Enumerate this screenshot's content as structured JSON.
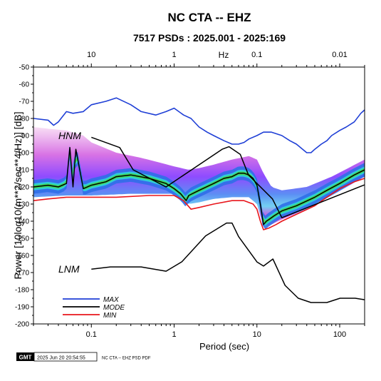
{
  "chart_data": {
    "type": "line",
    "title": "NC CTA -- EHZ",
    "subtitle": "7517 PSDs : 2025.001 - 2025:169",
    "xlabel": "Period (sec)",
    "ylabel": "Power [10log10(m**2/sec**4/Hz)] [dB]",
    "top_axis_label": "Hz",
    "x_scale": "log",
    "xlim": [
      0.02,
      200
    ],
    "ylim": [
      -200,
      -50
    ],
    "x_ticks": [
      {
        "value": 0.1,
        "label": "0.1"
      },
      {
        "value": 1,
        "label": "1"
      },
      {
        "value": 10,
        "label": "10"
      },
      {
        "value": 100,
        "label": "100"
      }
    ],
    "top_ticks": [
      {
        "value": 0.1,
        "label": "10"
      },
      {
        "value": 1,
        "label": "1"
      },
      {
        "value": 10,
        "label": "0.1"
      },
      {
        "value": 100,
        "label": "0.01"
      }
    ],
    "y_ticks": [
      -50,
      -60,
      -70,
      -80,
      -90,
      -100,
      -110,
      -120,
      -130,
      -140,
      -150,
      -160,
      -170,
      -180,
      -190,
      -200
    ],
    "annotations": [
      {
        "text": "HNM",
        "x": 0.04,
        "y": -92
      },
      {
        "text": "LNM",
        "x": 0.04,
        "y": -170
      }
    ],
    "legend": {
      "placement": "bottom-left",
      "entries": [
        {
          "label": "MAX",
          "color": "#1f3fd6"
        },
        {
          "label": "MODE",
          "color": "#000000"
        },
        {
          "label": "MIN",
          "color": "#e8161c"
        }
      ]
    },
    "series": [
      {
        "name": "MAX",
        "color": "#1f3fd6",
        "x": [
          0.02,
          0.03,
          0.035,
          0.04,
          0.05,
          0.06,
          0.08,
          0.1,
          0.15,
          0.2,
          0.3,
          0.4,
          0.6,
          0.8,
          1,
          1.3,
          1.6,
          2,
          2.5,
          3,
          4,
          5,
          6,
          7,
          8,
          10,
          12,
          15,
          20,
          25,
          30,
          40,
          45,
          50,
          60,
          70,
          80,
          100,
          120,
          150,
          180,
          200
        ],
        "y": [
          -80,
          -81,
          -84,
          -82,
          -76,
          -77,
          -76,
          -72,
          -70,
          -68,
          -72,
          -76,
          -78,
          -76,
          -74,
          -78,
          -80,
          -85,
          -88,
          -90,
          -93,
          -95,
          -95,
          -94,
          -92,
          -90,
          -88,
          -88,
          -90,
          -93,
          -95,
          -100,
          -100,
          -98,
          -95,
          -93,
          -90,
          -87,
          -85,
          -82,
          -77,
          -75
        ]
      },
      {
        "name": "MODE",
        "color": "#000000",
        "x": [
          0.02,
          0.03,
          0.04,
          0.05,
          0.055,
          0.06,
          0.065,
          0.08,
          0.1,
          0.15,
          0.2,
          0.3,
          0.5,
          0.8,
          1,
          1.2,
          1.4,
          1.5,
          2,
          3,
          4,
          5,
          6,
          7,
          8,
          9,
          10,
          11,
          12,
          13,
          14,
          16,
          20,
          30,
          50,
          70,
          100,
          150,
          200
        ],
        "y": [
          -120,
          -119,
          -120,
          -118,
          -97,
          -120,
          -98,
          -121,
          -119,
          -117,
          -114,
          -113,
          -115,
          -118,
          -121,
          -124,
          -128,
          -125,
          -122,
          -118,
          -115,
          -114,
          -112,
          -112,
          -113,
          -115,
          -119,
          -130,
          -142,
          -140,
          -139,
          -137,
          -134,
          -131,
          -126,
          -122,
          -118,
          -113,
          -110
        ]
      },
      {
        "name": "MIN",
        "color": "#e8161c",
        "x": [
          0.02,
          0.03,
          0.05,
          0.1,
          0.2,
          0.5,
          0.8,
          1,
          1.3,
          1.6,
          2,
          3,
          5,
          7,
          9,
          10,
          11,
          12,
          14,
          17,
          20,
          30,
          50,
          70,
          100,
          150,
          200
        ],
        "y": [
          -128,
          -127,
          -126,
          -126,
          -126,
          -125,
          -125,
          -125,
          -128,
          -133,
          -132,
          -130,
          -128,
          -128,
          -130,
          -133,
          -140,
          -145,
          -144,
          -142,
          -140,
          -136,
          -131,
          -126,
          -121,
          -117,
          -115
        ]
      },
      {
        "name": "HNM",
        "color": "#000000",
        "x": [
          0.1,
          0.22,
          0.32,
          0.8,
          3.8,
          4.6,
          6.3,
          7.9,
          15.4,
          20,
          354
        ],
        "y": [
          -91,
          -97,
          -110,
          -120,
          -98,
          -96.5,
          -101,
          -113,
          -127,
          -138,
          -114
        ]
      },
      {
        "name": "LNM",
        "color": "#000000",
        "x": [
          0.1,
          0.17,
          0.4,
          0.8,
          1.24,
          2.4,
          4.3,
          5,
          6,
          10,
          12,
          15.6,
          21.9,
          31.6,
          45,
          70,
          101,
          154,
          328
        ],
        "y": [
          -168,
          -166.7,
          -166.7,
          -169.2,
          -163.7,
          -148.6,
          -141.1,
          -141.1,
          -149.0,
          -163.8,
          -166.2,
          -162.1,
          -177.5,
          -185.0,
          -187.5,
          -187.5,
          -185.0,
          -185.0,
          -187.5
        ]
      }
    ],
    "psd_density": {
      "colormap": "pqlx (white - pink - magenta - blue - cyan - green - yellow - red)",
      "upper_envelope": {
        "x": [
          0.02,
          0.03,
          0.05,
          0.08,
          0.1,
          0.2,
          0.4,
          0.7,
          1,
          1.5,
          2,
          3,
          5,
          8,
          10,
          12,
          15,
          20,
          40,
          80,
          200
        ],
        "y": [
          -85,
          -86,
          -87,
          -90,
          -94,
          -100,
          -103,
          -106,
          -108,
          -110,
          -109,
          -107,
          -104,
          -102,
          -104,
          -112,
          -120,
          -122,
          -120,
          -114,
          -104
        ]
      },
      "lower_envelope": {
        "x": [
          0.02,
          0.05,
          0.1,
          0.3,
          0.8,
          1,
          1.5,
          2,
          3,
          5,
          8,
          10,
          12,
          15,
          20,
          40,
          80,
          200
        ],
        "y": [
          -126,
          -125,
          -125,
          -124,
          -124,
          -124,
          -130,
          -129,
          -127,
          -126,
          -126,
          -130,
          -143,
          -142,
          -139,
          -133,
          -125,
          -114
        ]
      },
      "dense_band_offset_db": 4
    },
    "footer": {
      "logo_text": "GMT",
      "timestamp": "2025 Jun 20 20:54:55",
      "caption": "NC CTA -- EHZ PSD PDF"
    }
  }
}
